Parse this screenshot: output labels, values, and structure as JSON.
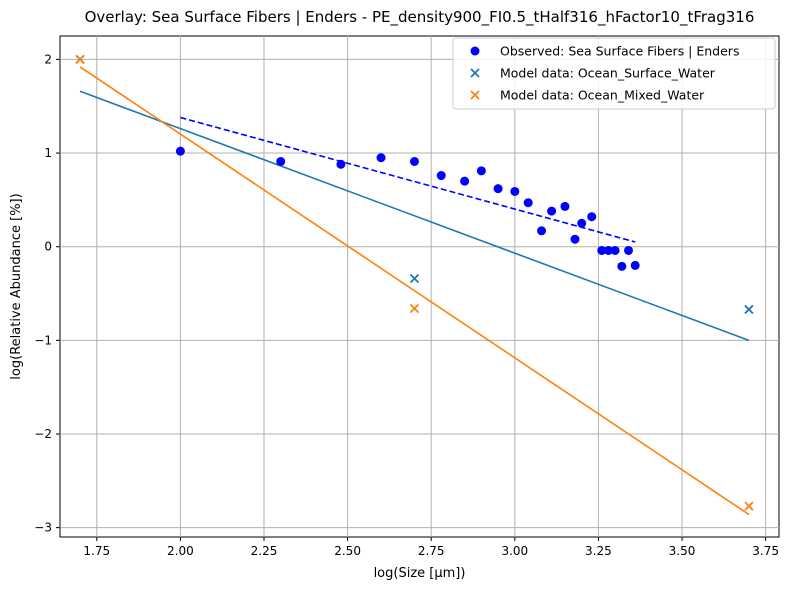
{
  "chart_data": {
    "type": "scatter",
    "title": "Overlay: Sea Surface Fibers | Enders - PE_density900_FI0.5_tHalf316_hFactor10_tFrag316",
    "xlabel": "log(Size [µm])",
    "ylabel": "log(Relative Abundance [%])",
    "xlim": [
      1.64,
      3.79
    ],
    "ylim": [
      -3.1,
      2.25
    ],
    "x_ticks": [
      1.75,
      2.0,
      2.25,
      2.5,
      2.75,
      3.0,
      3.25,
      3.5,
      3.75
    ],
    "x_tick_labels": [
      "1.75",
      "2.00",
      "2.25",
      "2.50",
      "2.75",
      "3.00",
      "3.25",
      "3.50",
      "3.75"
    ],
    "y_ticks": [
      -3,
      -2,
      -1,
      0,
      1,
      2
    ],
    "y_tick_labels": [
      "−3",
      "−2",
      "−1",
      "0",
      "1",
      "2"
    ],
    "grid": true,
    "legend_position": "top-right",
    "series": [
      {
        "name": "Observed: Sea Surface Fibers | Enders",
        "kind": "scatter",
        "marker": "circle",
        "color": "#0000ff",
        "points": [
          [
            2.0,
            1.02
          ],
          [
            2.3,
            0.91
          ],
          [
            2.48,
            0.88
          ],
          [
            2.6,
            0.95
          ],
          [
            2.7,
            0.91
          ],
          [
            2.78,
            0.76
          ],
          [
            2.85,
            0.7
          ],
          [
            2.9,
            0.81
          ],
          [
            2.95,
            0.62
          ],
          [
            3.0,
            0.59
          ],
          [
            3.04,
            0.47
          ],
          [
            3.08,
            0.17
          ],
          [
            3.11,
            0.38
          ],
          [
            3.15,
            0.43
          ],
          [
            3.18,
            0.08
          ],
          [
            3.2,
            0.25
          ],
          [
            3.23,
            0.32
          ],
          [
            3.26,
            -0.04
          ],
          [
            3.28,
            -0.04
          ],
          [
            3.3,
            -0.04
          ],
          [
            3.32,
            -0.21
          ],
          [
            3.34,
            -0.04
          ],
          [
            3.36,
            -0.2
          ]
        ]
      },
      {
        "name": "Model data: Ocean_Surface_Water",
        "kind": "scatter",
        "marker": "x",
        "color": "#1f77b4",
        "points": [
          [
            1.7,
            2.0
          ],
          [
            2.7,
            -0.34
          ],
          [
            3.7,
            -0.67
          ]
        ]
      },
      {
        "name": "Model data: Ocean_Mixed_Water",
        "kind": "scatter",
        "marker": "x",
        "color": "#ff7f0e",
        "points": [
          [
            1.7,
            2.0
          ],
          [
            2.7,
            -0.66
          ],
          [
            3.7,
            -2.77
          ]
        ]
      },
      {
        "kind": "line",
        "style": "dashed",
        "color": "#0000ff",
        "points": [
          [
            2.0,
            1.38
          ],
          [
            3.36,
            0.05
          ]
        ]
      },
      {
        "kind": "line",
        "style": "solid",
        "color": "#1f77b4",
        "points": [
          [
            1.7,
            1.66
          ],
          [
            3.7,
            -1.0
          ]
        ]
      },
      {
        "kind": "line",
        "style": "solid",
        "color": "#ff7f0e",
        "points": [
          [
            1.7,
            1.92
          ],
          [
            3.7,
            -2.86
          ]
        ]
      }
    ]
  }
}
